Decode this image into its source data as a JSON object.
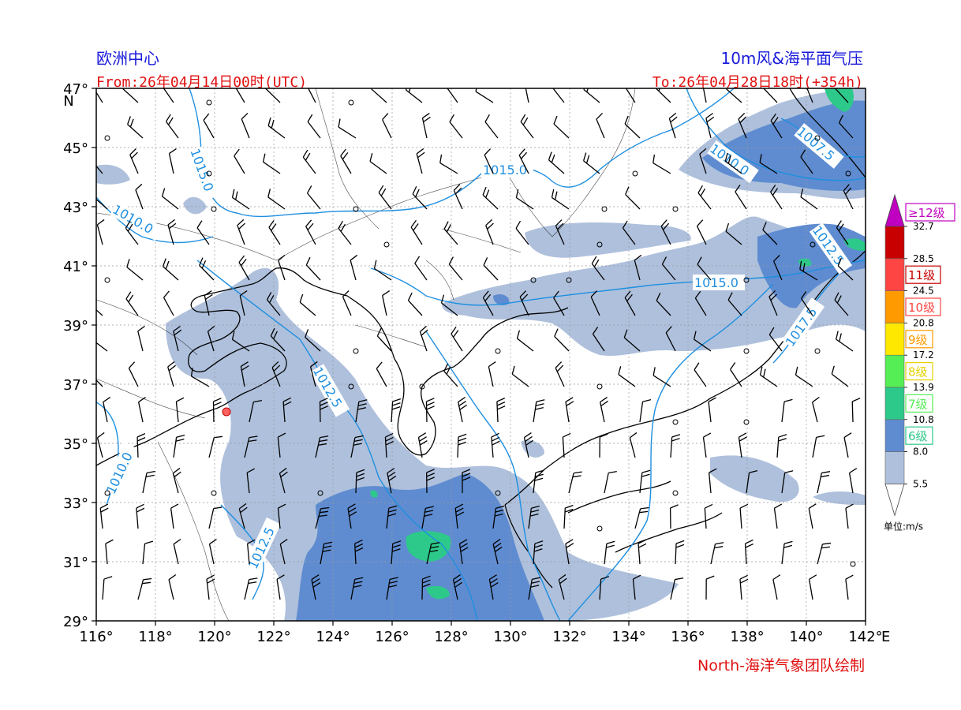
{
  "header": {
    "model": "欧洲中心",
    "product": "10m风&海平面气压",
    "from": "From:26年04月14日00时(UTC)",
    "to": "To:26年04月28日18时(+354h)"
  },
  "footer": {
    "credit": "North-海洋气象团队绘制"
  },
  "axes": {
    "lon_range": [
      116,
      142
    ],
    "lat_range": [
      29,
      47
    ],
    "x_ticks": [
      "116°",
      "118°",
      "120°",
      "122°",
      "124°",
      "126°",
      "128°",
      "130°",
      "132°",
      "134°",
      "136°",
      "138°",
      "140°",
      "142°"
    ],
    "x_unit": "E",
    "y_ticks": [
      "29°",
      "31°",
      "33°",
      "35°",
      "37°",
      "39°",
      "41°",
      "43°",
      "45°",
      "47°"
    ],
    "y_unit": "N",
    "grid": true
  },
  "colorbar": {
    "unit_label": "单位:m/s",
    "colors": [
      "#aec0dc",
      "#5f8cd0",
      "#2dc98a",
      "#55ee55",
      "#ffe800",
      "#ff9a00",
      "#ff4444",
      "#c80000",
      "#c000c0"
    ],
    "thresholds": [
      "5.5",
      "8.0",
      "10.8",
      "13.9",
      "17.2",
      "20.8",
      "24.5",
      "28.5",
      "32.7"
    ],
    "levels": [
      {
        "label": "6级",
        "color": "#2dc98a"
      },
      {
        "label": "7级",
        "color": "#55ee55"
      },
      {
        "label": "8级",
        "color": "#e6d200"
      },
      {
        "label": "9级",
        "color": "#ff9a00"
      },
      {
        "label": "10级",
        "color": "#ff4444"
      },
      {
        "label": "11级",
        "color": "#c80000"
      },
      {
        "label": "≥12级",
        "color": "#c000c0"
      }
    ]
  },
  "isobars": [
    "1015.0",
    "1010.0",
    "1015.0",
    "1010.0",
    "1007.5",
    "1012.5",
    "1015.0",
    "1017.5",
    "1012.5",
    "1010.0",
    "1012.5",
    "1007.5"
  ],
  "colors": {
    "isobar": "#1e8fe0",
    "title": "#1a1adc",
    "accent": "#e01010",
    "grid": "#999999"
  }
}
